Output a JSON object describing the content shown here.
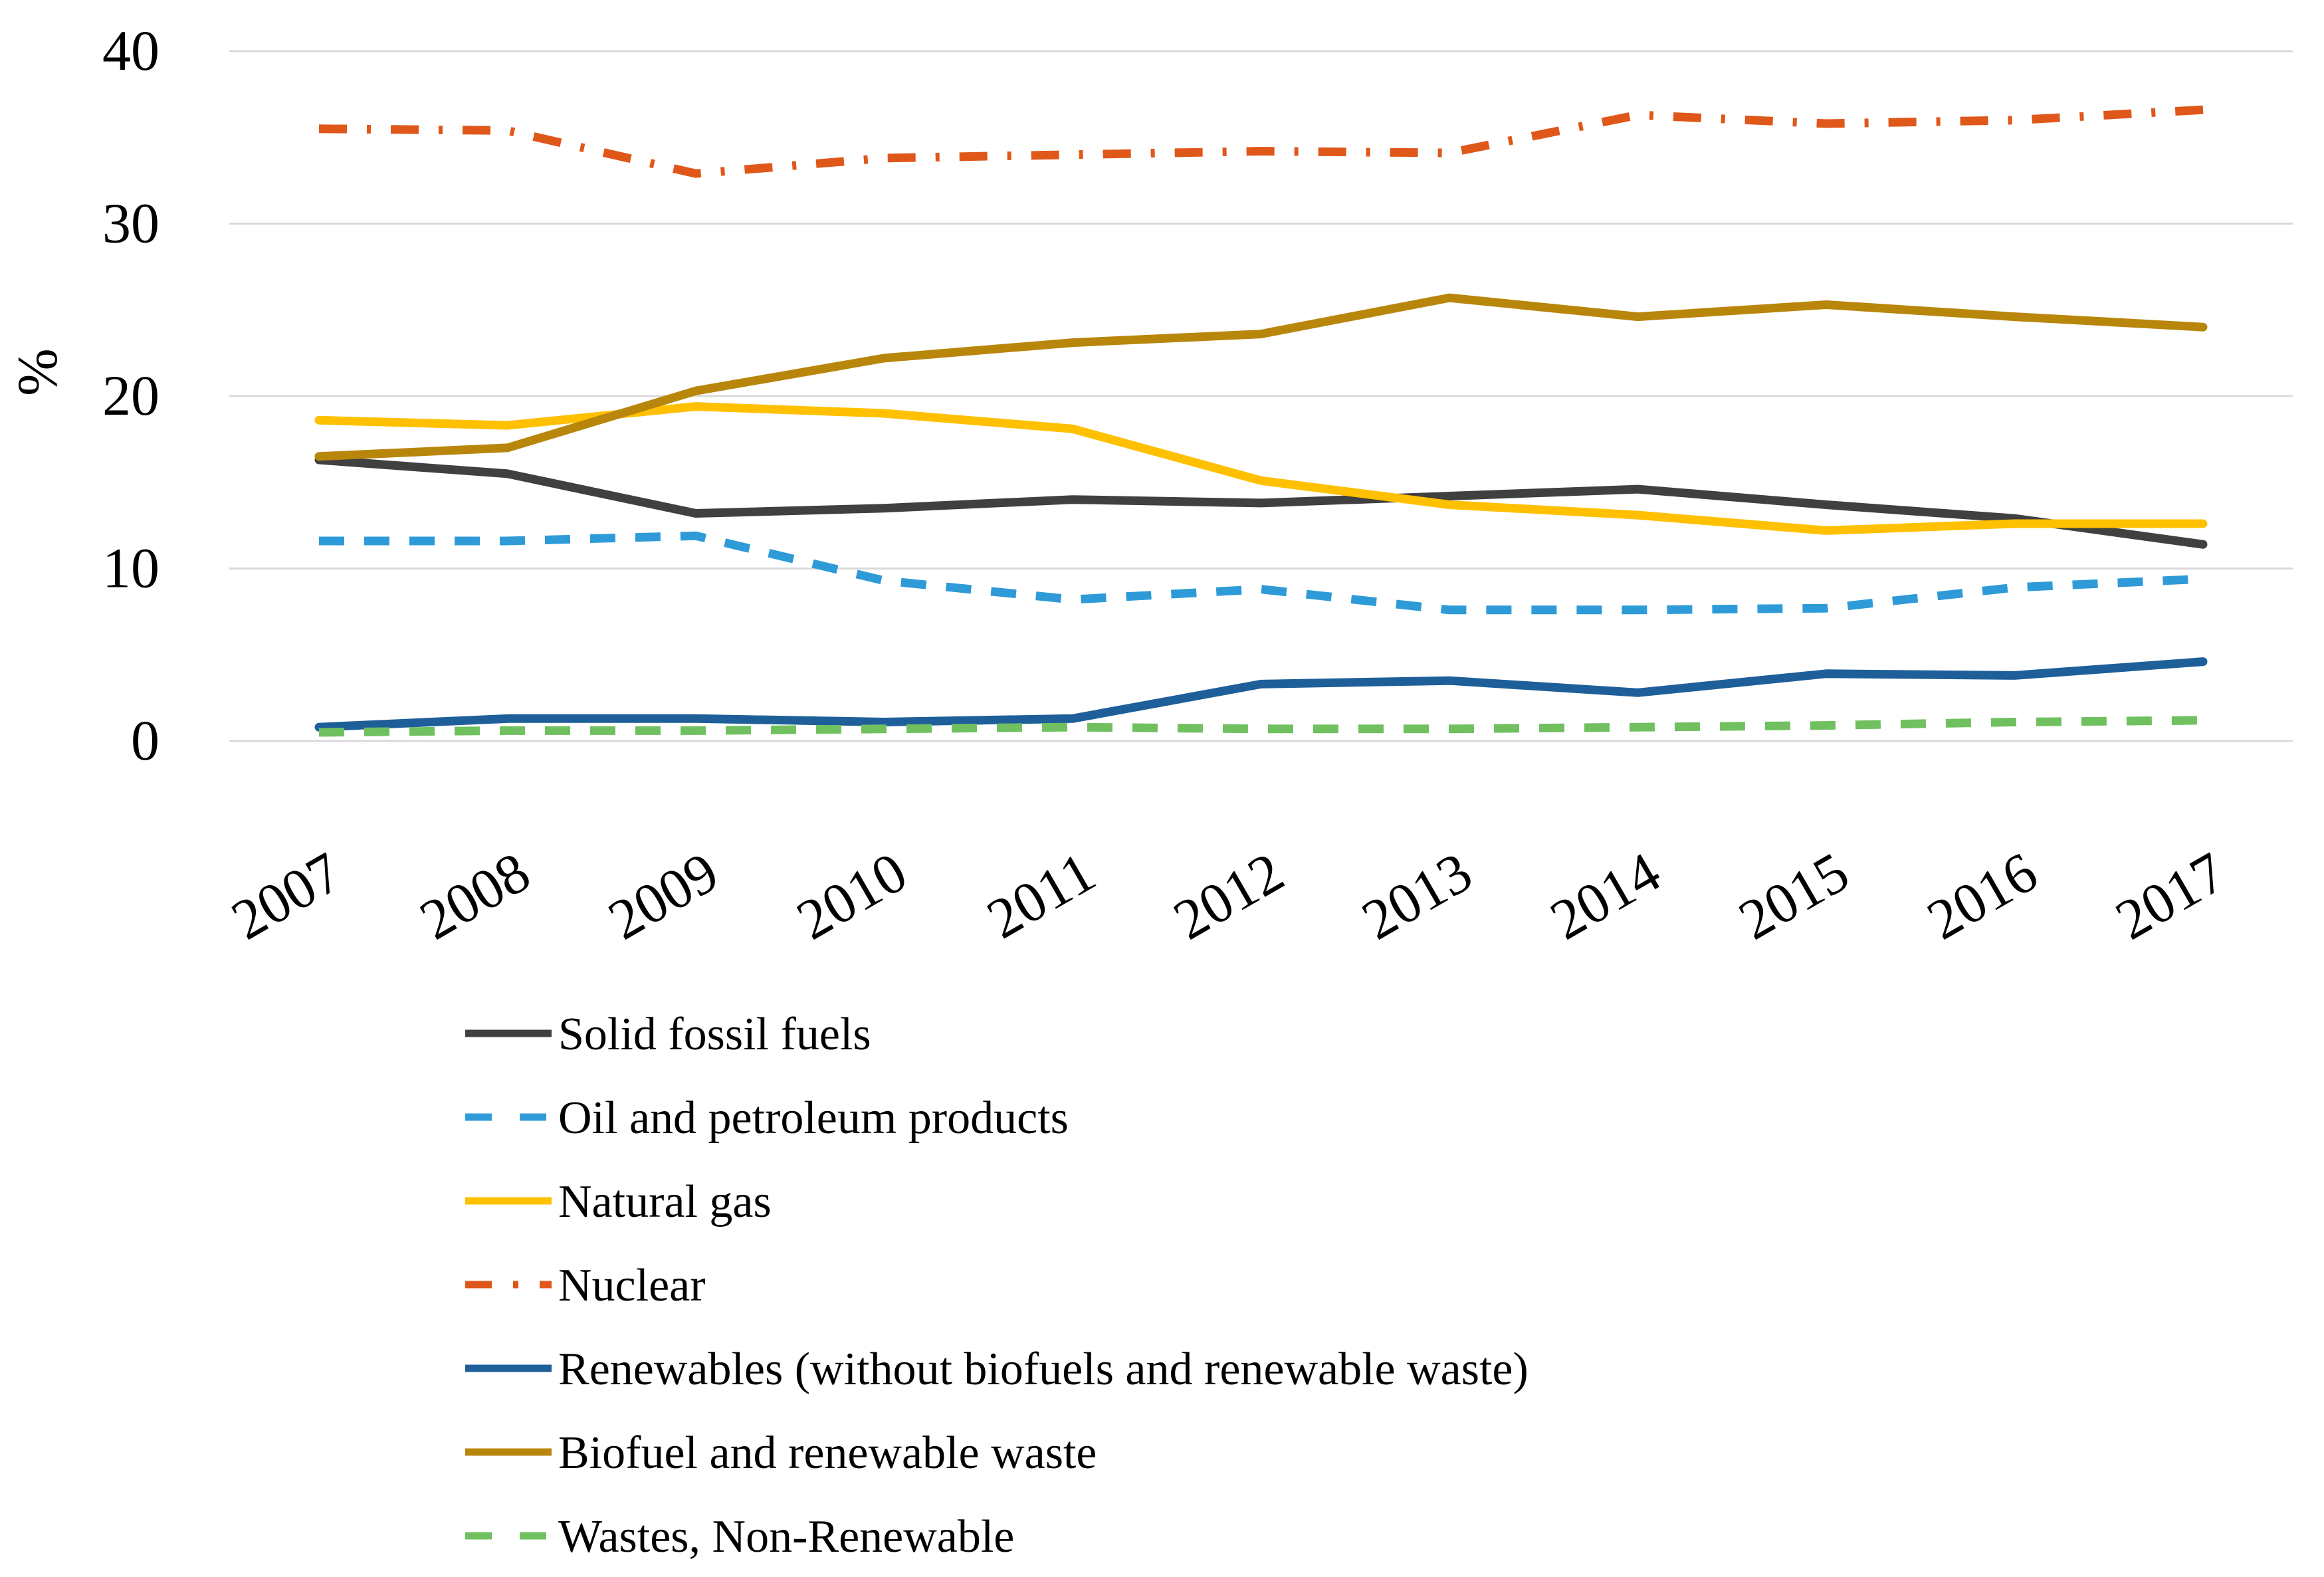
{
  "chart_data": {
    "type": "line",
    "title": "",
    "xlabel": "",
    "ylabel": "%",
    "ylim": [
      0,
      40
    ],
    "yticks": [
      0,
      10,
      20,
      30,
      40
    ],
    "grid": true,
    "legend_position": "bottom",
    "categories": [
      "2007",
      "2008",
      "2009",
      "2010",
      "2011",
      "2012",
      "2013",
      "2014",
      "2015",
      "2016",
      "2017"
    ],
    "series": [
      {
        "name": "Solid fossil fuels",
        "color": "#404040",
        "dash": "solid",
        "values": [
          16.3,
          15.5,
          13.2,
          13.5,
          14.0,
          13.8,
          14.2,
          14.6,
          13.7,
          12.9,
          11.4
        ]
      },
      {
        "name": "Oil and petroleum products",
        "color": "#2E9BD8",
        "dash": "dash",
        "values": [
          11.6,
          11.6,
          11.9,
          9.3,
          8.2,
          8.8,
          7.6,
          7.6,
          7.7,
          8.9,
          9.4
        ]
      },
      {
        "name": "Natural gas",
        "color": "#FFC000",
        "dash": "solid",
        "values": [
          18.6,
          18.3,
          19.4,
          19.0,
          18.1,
          15.1,
          13.7,
          13.1,
          12.2,
          12.6,
          12.6
        ]
      },
      {
        "name": "Nuclear",
        "color": "#E0571A",
        "dash": "dashdot",
        "values": [
          35.5,
          35.4,
          32.9,
          33.8,
          34.0,
          34.2,
          34.1,
          36.3,
          35.8,
          36.0,
          36.6
        ]
      },
      {
        "name": "Renewables (without biofuels and renewable waste)",
        "color": "#1E5F99",
        "dash": "solid",
        "values": [
          0.8,
          1.3,
          1.3,
          1.1,
          1.3,
          3.3,
          3.5,
          2.8,
          3.9,
          3.8,
          4.6
        ]
      },
      {
        "name": "Biofuel and renewable waste",
        "color": "#B8860B",
        "dash": "solid",
        "values": [
          16.5,
          17.0,
          20.3,
          22.2,
          23.1,
          23.6,
          25.7,
          24.6,
          25.3,
          24.6,
          24.0
        ]
      },
      {
        "name": "Wastes, Non-Renewable",
        "color": "#70C060",
        "dash": "dash",
        "values": [
          0.5,
          0.6,
          0.6,
          0.7,
          0.8,
          0.7,
          0.7,
          0.8,
          0.9,
          1.1,
          1.2
        ]
      }
    ]
  }
}
